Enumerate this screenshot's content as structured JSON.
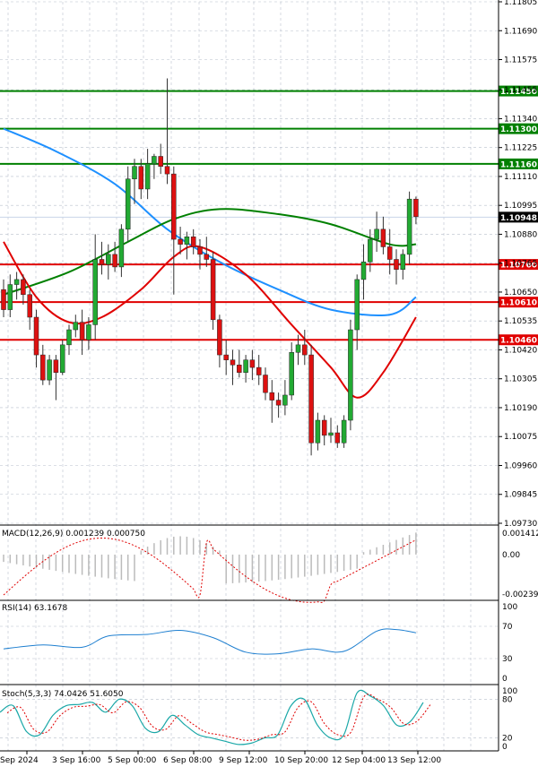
{
  "chart_data": {
    "type": "candlestick",
    "price_axis": {
      "ticks": [
        "1.11805",
        "1.11690",
        "1.11575",
        "1.11455",
        "1.11340",
        "1.11225",
        "1.11110",
        "1.10995",
        "1.10880",
        "1.10765",
        "1.10650",
        "1.10535",
        "1.10420",
        "1.10305",
        "1.10190",
        "1.10075",
        "1.09960",
        "1.09845",
        "1.09730"
      ],
      "range": [
        1.0973,
        1.11805
      ]
    },
    "current_price": "1.10948",
    "levels": [
      {
        "label": "1.11450",
        "value": 1.1145,
        "color": "#008000"
      },
      {
        "label": "1.11300",
        "value": 1.113,
        "color": "#008000"
      },
      {
        "label": "1.11160",
        "value": 1.1116,
        "color": "#008000"
      },
      {
        "label": "1.10760",
        "value": 1.1076,
        "color": "#e00000"
      },
      {
        "label": "1.10610",
        "value": 1.1061,
        "color": "#e00000"
      },
      {
        "label": "1.10460",
        "value": 1.1046,
        "color": "#e00000"
      }
    ],
    "time_labels": [
      "Sep 2024",
      "3 Sep 16:00",
      "5 Sep 00:00",
      "6 Sep 08:00",
      "9 Sep 12:00",
      "10 Sep 20:00",
      "12 Sep 04:00",
      "13 Sep 12:00"
    ],
    "candles": [
      [
        1.1066,
        1.107,
        1.1055,
        1.1058
      ],
      [
        1.1058,
        1.1072,
        1.1055,
        1.1068
      ],
      [
        1.1068,
        1.1073,
        1.1062,
        1.107
      ],
      [
        1.107,
        1.1072,
        1.106,
        1.1064
      ],
      [
        1.1064,
        1.1066,
        1.105,
        1.1055
      ],
      [
        1.1055,
        1.1058,
        1.1035,
        1.104
      ],
      [
        1.104,
        1.1044,
        1.1028,
        1.103
      ],
      [
        1.103,
        1.104,
        1.1028,
        1.1038
      ],
      [
        1.1038,
        1.104,
        1.1022,
        1.1033
      ],
      [
        1.1033,
        1.1046,
        1.1032,
        1.1044
      ],
      [
        1.1044,
        1.1052,
        1.104,
        1.105
      ],
      [
        1.105,
        1.1056,
        1.1047,
        1.1053
      ],
      [
        1.1053,
        1.1058,
        1.104,
        1.1046
      ],
      [
        1.1046,
        1.1055,
        1.1042,
        1.1052
      ],
      [
        1.1052,
        1.1088,
        1.1046,
        1.1078
      ],
      [
        1.1078,
        1.1085,
        1.1072,
        1.1076
      ],
      [
        1.1076,
        1.1084,
        1.107,
        1.108
      ],
      [
        1.108,
        1.1085,
        1.1073,
        1.1075
      ],
      [
        1.1075,
        1.1092,
        1.1071,
        1.109
      ],
      [
        1.109,
        1.1115,
        1.1085,
        1.111
      ],
      [
        1.111,
        1.1118,
        1.11,
        1.1115
      ],
      [
        1.1115,
        1.1118,
        1.1102,
        1.1106
      ],
      [
        1.1106,
        1.1122,
        1.1102,
        1.1116
      ],
      [
        1.1116,
        1.112,
        1.111,
        1.1119
      ],
      [
        1.1119,
        1.1124,
        1.1112,
        1.1115
      ],
      [
        1.1115,
        1.115,
        1.1108,
        1.1112
      ],
      [
        1.1112,
        1.1115,
        1.1064,
        1.1086
      ],
      [
        1.1086,
        1.1091,
        1.108,
        1.1084
      ],
      [
        1.1084,
        1.1089,
        1.1078,
        1.1087
      ],
      [
        1.1087,
        1.109,
        1.108,
        1.1083
      ],
      [
        1.1083,
        1.1086,
        1.1074,
        1.108
      ],
      [
        1.108,
        1.1087,
        1.1075,
        1.1078
      ],
      [
        1.1078,
        1.1081,
        1.105,
        1.1054
      ],
      [
        1.1054,
        1.1056,
        1.1035,
        1.104
      ],
      [
        1.104,
        1.1046,
        1.1032,
        1.1038
      ],
      [
        1.1038,
        1.1042,
        1.1028,
        1.1036
      ],
      [
        1.1036,
        1.1042,
        1.1031,
        1.1033
      ],
      [
        1.1033,
        1.104,
        1.1029,
        1.1038
      ],
      [
        1.1038,
        1.1042,
        1.103,
        1.1035
      ],
      [
        1.1035,
        1.104,
        1.1028,
        1.1032
      ],
      [
        1.1032,
        1.1035,
        1.1022,
        1.1025
      ],
      [
        1.1025,
        1.103,
        1.1013,
        1.1022
      ],
      [
        1.1022,
        1.1025,
        1.1015,
        1.102
      ],
      [
        1.102,
        1.103,
        1.1016,
        1.1024
      ],
      [
        1.1024,
        1.1045,
        1.1022,
        1.1041
      ],
      [
        1.1041,
        1.1048,
        1.1036,
        1.1044
      ],
      [
        1.1044,
        1.105,
        1.1036,
        1.104
      ],
      [
        1.104,
        1.1044,
        1.1,
        1.1005
      ],
      [
        1.1005,
        1.1017,
        1.1002,
        1.1014
      ],
      [
        1.1014,
        1.1016,
        1.1004,
        1.1008
      ],
      [
        1.1008,
        1.1015,
        1.1005,
        1.1009
      ],
      [
        1.1009,
        1.1012,
        1.1003,
        1.1005
      ],
      [
        1.1005,
        1.1016,
        1.1003,
        1.1014
      ],
      [
        1.1014,
        1.1054,
        1.101,
        1.105
      ],
      [
        1.105,
        1.1072,
        1.1042,
        1.107
      ],
      [
        1.107,
        1.1084,
        1.1062,
        1.1077
      ],
      [
        1.1077,
        1.109,
        1.1073,
        1.1086
      ],
      [
        1.1086,
        1.1097,
        1.1081,
        1.109
      ],
      [
        1.109,
        1.1095,
        1.108,
        1.1083
      ],
      [
        1.1083,
        1.109,
        1.1072,
        1.1078
      ],
      [
        1.1078,
        1.1082,
        1.1068,
        1.1074
      ],
      [
        1.1074,
        1.1082,
        1.107,
        1.108
      ],
      [
        1.108,
        1.1105,
        1.1076,
        1.1102
      ],
      [
        1.1102,
        1.1103,
        1.1092,
        1.1095
      ]
    ],
    "moving_averages": [
      {
        "color": "#1e90ff",
        "values": [
          [
            0,
            1.113
          ],
          [
            8,
            1.1121
          ],
          [
            17,
            1.1108
          ],
          [
            25,
            1.109
          ],
          [
            33,
            1.1077
          ],
          [
            42,
            1.1066
          ],
          [
            50,
            1.1058
          ],
          [
            59,
            1.1056
          ],
          [
            63,
            1.1063
          ]
        ]
      },
      {
        "color": "#008000",
        "values": [
          [
            0,
            1.1064
          ],
          [
            10,
            1.1073
          ],
          [
            19,
            1.1085
          ],
          [
            26,
            1.1094
          ],
          [
            33,
            1.1098
          ],
          [
            42,
            1.1096
          ],
          [
            50,
            1.1092
          ],
          [
            59,
            1.1084
          ],
          [
            63,
            1.1084
          ]
        ]
      },
      {
        "color": "#e00000",
        "values": [
          [
            0,
            1.1085
          ],
          [
            5,
            1.1063
          ],
          [
            10,
            1.1053
          ],
          [
            15,
            1.1055
          ],
          [
            21,
            1.1066
          ],
          [
            26,
            1.1079
          ],
          [
            30,
            1.1083
          ],
          [
            37,
            1.1072
          ],
          [
            44,
            1.1052
          ],
          [
            50,
            1.1035
          ],
          [
            54,
            1.1023
          ],
          [
            58,
            1.1033
          ],
          [
            63,
            1.1055
          ]
        ]
      }
    ],
    "macd": {
      "label": "MACD(12,26,9) 0.001239 0.000750",
      "ticks": [
        "0.001412",
        "0.00",
        "-0.002394"
      ],
      "range": [
        -0.002394,
        0.001412
      ]
    },
    "rsi": {
      "label": "RSI(14) 63.1678",
      "ticks": [
        "100",
        "70",
        "30",
        "0"
      ],
      "range": [
        0,
        100
      ],
      "values": [
        [
          0,
          42
        ],
        [
          6,
          47
        ],
        [
          12,
          44
        ],
        [
          16,
          58
        ],
        [
          22,
          60
        ],
        [
          27,
          65
        ],
        [
          32,
          56
        ],
        [
          37,
          38
        ],
        [
          42,
          36
        ],
        [
          47,
          42
        ],
        [
          52,
          39
        ],
        [
          57,
          64
        ],
        [
          60,
          66
        ],
        [
          63,
          62
        ]
      ]
    },
    "stoch": {
      "label": "Stoch(5,3,3) 74.0426 51.6050",
      "ticks": [
        "100",
        "80",
        "20",
        "0"
      ],
      "range": [
        0,
        100
      ]
    }
  }
}
